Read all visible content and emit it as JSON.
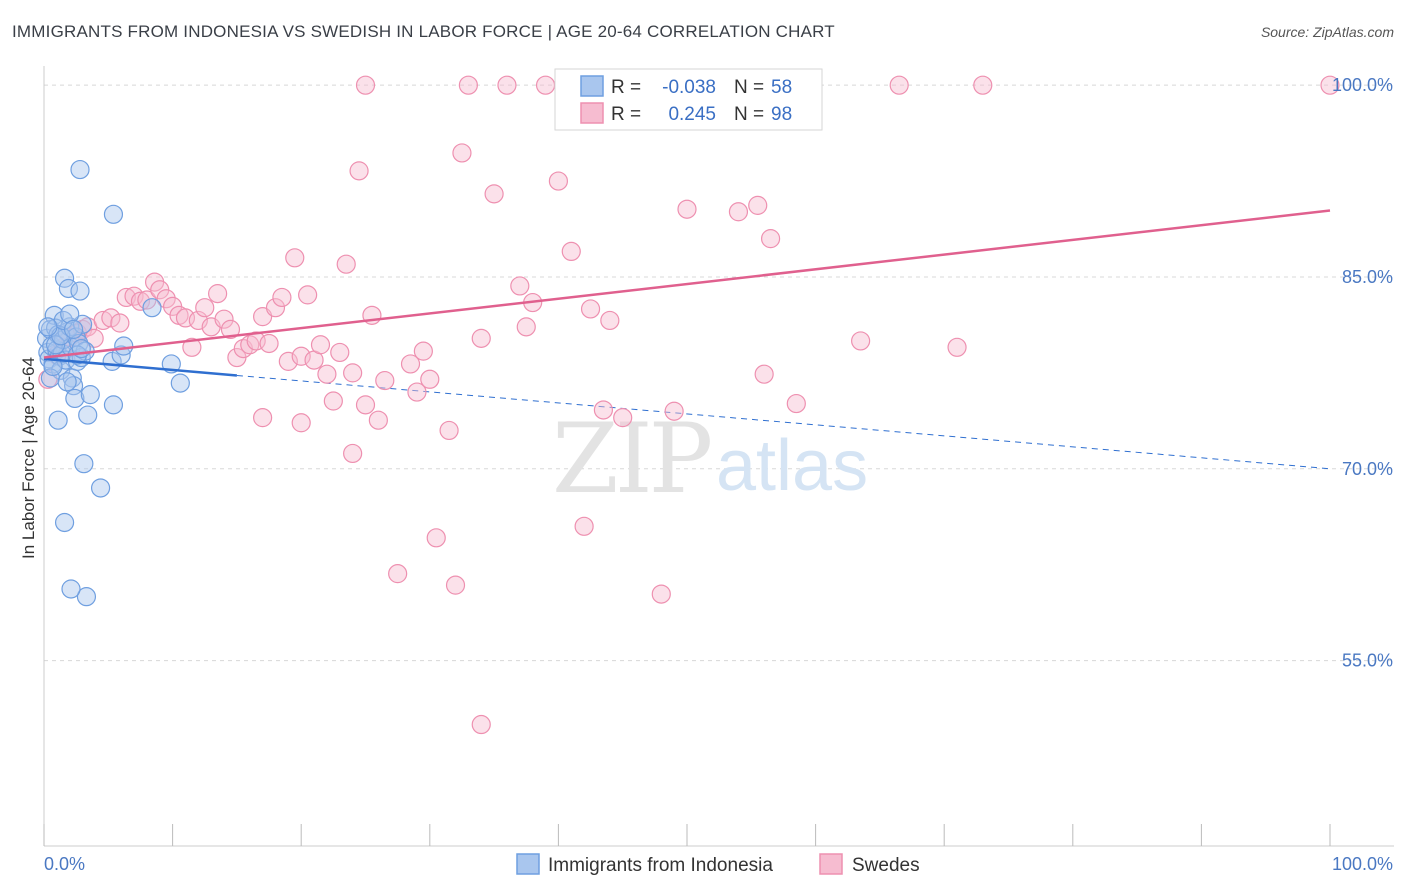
{
  "header": {
    "title": "IMMIGRANTS FROM INDONESIA VS SWEDISH IN LABOR FORCE | AGE 20-64 CORRELATION CHART",
    "source": "Source: ZipAtlas.com"
  },
  "watermark": {
    "part1": "ZIP",
    "part2": "atlas"
  },
  "colors": {
    "blue_fill": "#a9c6ee",
    "blue_stroke": "#6f9fe0",
    "blue_line": "#2f6fd0",
    "pink_fill": "#f6bcd0",
    "pink_stroke": "#ee90b0",
    "pink_line": "#e0608e",
    "tick_text": "#4a78c2",
    "grid": "#d8d8d8"
  },
  "chart_data": {
    "type": "scatter",
    "title": "IMMIGRANTS FROM INDONESIA VS SWEDISH IN LABOR FORCE | AGE 20-64 CORRELATION CHART",
    "xlabel": "",
    "ylabel": "In Labor Force | Age 20-64",
    "xlim": [
      0,
      100
    ],
    "ylim": [
      40.5,
      101.5
    ],
    "x_tick_labels": [
      "0.0%",
      "100.0%"
    ],
    "y_ticks": [
      55,
      70,
      85,
      100
    ],
    "y_tick_labels": [
      "55.0%",
      "70.0%",
      "85.0%",
      "100.0%"
    ],
    "grid": true,
    "legend_position": "bottom-center",
    "stats": [
      {
        "r_label": "R =",
        "r_value": "-0.038",
        "n_label": "N =",
        "n_value": "58"
      },
      {
        "r_label": "R =",
        "r_value": "0.245",
        "n_label": "N =",
        "n_value": "98"
      }
    ],
    "series": [
      {
        "name": "Immigrants from Indonesia",
        "color": "#6f9fe0",
        "trend": {
          "x0": 0,
          "y0": 78.6,
          "x1": 15,
          "y1": 77.3,
          "dash_x1": 100,
          "dash_y1": 70.0
        },
        "points": [
          [
            0.2,
            80.2
          ],
          [
            0.3,
            79.1
          ],
          [
            0.4,
            78.6
          ],
          [
            0.5,
            80.9
          ],
          [
            0.6,
            79.6
          ],
          [
            0.7,
            78.2
          ],
          [
            0.8,
            82.0
          ],
          [
            0.9,
            81.0
          ],
          [
            1.0,
            79.3
          ],
          [
            1.1,
            80.5
          ],
          [
            1.2,
            78.8
          ],
          [
            1.3,
            77.7
          ],
          [
            1.4,
            79.0
          ],
          [
            1.5,
            80.1
          ],
          [
            1.6,
            84.9
          ],
          [
            1.7,
            78.5
          ],
          [
            1.8,
            80.7
          ],
          [
            1.9,
            84.1
          ],
          [
            2.0,
            81.1
          ],
          [
            2.1,
            79.5
          ],
          [
            2.2,
            77.1
          ],
          [
            2.3,
            76.5
          ],
          [
            2.4,
            75.5
          ],
          [
            2.5,
            80.3
          ],
          [
            2.6,
            78.4
          ],
          [
            2.7,
            79.8
          ],
          [
            2.8,
            83.9
          ],
          [
            2.9,
            78.7
          ],
          [
            3.0,
            81.3
          ],
          [
            3.2,
            79.2
          ],
          [
            3.4,
            74.2
          ],
          [
            3.6,
            75.8
          ],
          [
            0.5,
            77.1
          ],
          [
            0.7,
            78.0
          ],
          [
            0.9,
            79.7
          ],
          [
            1.1,
            73.8
          ],
          [
            1.3,
            80.4
          ],
          [
            1.5,
            81.6
          ],
          [
            1.8,
            76.8
          ],
          [
            2.0,
            82.1
          ],
          [
            2.3,
            80.9
          ],
          [
            2.6,
            78.9
          ],
          [
            2.9,
            79.4
          ],
          [
            3.1,
            70.4
          ],
          [
            3.3,
            60.0
          ],
          [
            2.1,
            60.6
          ],
          [
            1.6,
            65.8
          ],
          [
            4.4,
            68.5
          ],
          [
            5.3,
            78.4
          ],
          [
            6.0,
            78.9
          ],
          [
            6.2,
            79.6
          ],
          [
            5.4,
            75.0
          ],
          [
            8.4,
            82.6
          ],
          [
            9.9,
            78.2
          ],
          [
            10.6,
            76.7
          ],
          [
            2.8,
            93.4
          ],
          [
            5.4,
            89.9
          ],
          [
            0.3,
            81.1
          ]
        ]
      },
      {
        "name": "Swedes",
        "color": "#ee90b0",
        "trend": {
          "x0": 0,
          "y0": 78.7,
          "x1": 100,
          "y1": 90.2
        },
        "points": [
          [
            0.3,
            77.0
          ],
          [
            1.0,
            78.9
          ],
          [
            1.5,
            79.5
          ],
          [
            2.0,
            80.3
          ],
          [
            2.6,
            80.6
          ],
          [
            3.0,
            80.9
          ],
          [
            3.4,
            81.1
          ],
          [
            3.9,
            80.2
          ],
          [
            4.6,
            81.6
          ],
          [
            5.2,
            81.8
          ],
          [
            5.9,
            81.4
          ],
          [
            6.4,
            83.4
          ],
          [
            7.0,
            83.5
          ],
          [
            7.5,
            83.1
          ],
          [
            8.0,
            83.2
          ],
          [
            8.6,
            84.6
          ],
          [
            9.0,
            84.0
          ],
          [
            9.5,
            83.3
          ],
          [
            10.0,
            82.7
          ],
          [
            10.5,
            82.0
          ],
          [
            11.0,
            81.8
          ],
          [
            11.5,
            79.5
          ],
          [
            12.0,
            81.6
          ],
          [
            12.5,
            82.6
          ],
          [
            13.0,
            81.1
          ],
          [
            13.5,
            83.7
          ],
          [
            14.0,
            81.7
          ],
          [
            14.5,
            80.9
          ],
          [
            15.0,
            78.7
          ],
          [
            15.5,
            79.4
          ],
          [
            16.0,
            79.7
          ],
          [
            16.5,
            80.0
          ],
          [
            17.0,
            81.9
          ],
          [
            17.5,
            79.8
          ],
          [
            18.0,
            82.6
          ],
          [
            18.5,
            83.4
          ],
          [
            19.0,
            78.4
          ],
          [
            19.5,
            86.5
          ],
          [
            20.0,
            78.8
          ],
          [
            20.5,
            83.6
          ],
          [
            21.0,
            78.5
          ],
          [
            21.5,
            79.7
          ],
          [
            22.0,
            77.4
          ],
          [
            22.5,
            75.3
          ],
          [
            23.0,
            79.1
          ],
          [
            23.5,
            86.0
          ],
          [
            24.0,
            71.2
          ],
          [
            24.5,
            93.3
          ],
          [
            25.0,
            75.0
          ],
          [
            25.5,
            82.0
          ],
          [
            26.5,
            76.9
          ],
          [
            27.5,
            61.8
          ],
          [
            28.5,
            78.2
          ],
          [
            29.0,
            76.0
          ],
          [
            29.5,
            79.2
          ],
          [
            30.0,
            77.0
          ],
          [
            30.5,
            64.6
          ],
          [
            31.5,
            73.0
          ],
          [
            32.0,
            60.9
          ],
          [
            32.5,
            94.7
          ],
          [
            33.0,
            100.0
          ],
          [
            34.0,
            80.2
          ],
          [
            35.0,
            91.5
          ],
          [
            36.0,
            100.0
          ],
          [
            37.0,
            84.3
          ],
          [
            37.5,
            81.1
          ],
          [
            38.0,
            83.0
          ],
          [
            39.0,
            100.0
          ],
          [
            40.0,
            92.5
          ],
          [
            41.0,
            87.0
          ],
          [
            41.5,
            100.0
          ],
          [
            42.0,
            65.5
          ],
          [
            42.5,
            82.5
          ],
          [
            43.5,
            74.6
          ],
          [
            44.0,
            81.6
          ],
          [
            45.0,
            74.0
          ],
          [
            47.5,
            100.0
          ],
          [
            48.0,
            60.2
          ],
          [
            48.5,
            100.0
          ],
          [
            49.0,
            74.5
          ],
          [
            50.0,
            90.3
          ],
          [
            53.5,
            100.0
          ],
          [
            54.0,
            90.1
          ],
          [
            55.5,
            90.6
          ],
          [
            56.0,
            77.4
          ],
          [
            56.5,
            88.0
          ],
          [
            58.5,
            75.1
          ],
          [
            63.5,
            80.0
          ],
          [
            66.5,
            100.0
          ],
          [
            71.0,
            79.5
          ],
          [
            73.0,
            100.0
          ],
          [
            100.0,
            100.0
          ],
          [
            25.0,
            100.0
          ],
          [
            17.0,
            74.0
          ],
          [
            20.0,
            73.6
          ],
          [
            24.0,
            77.5
          ],
          [
            26.0,
            73.8
          ],
          [
            34.0,
            50.0
          ]
        ]
      }
    ]
  }
}
